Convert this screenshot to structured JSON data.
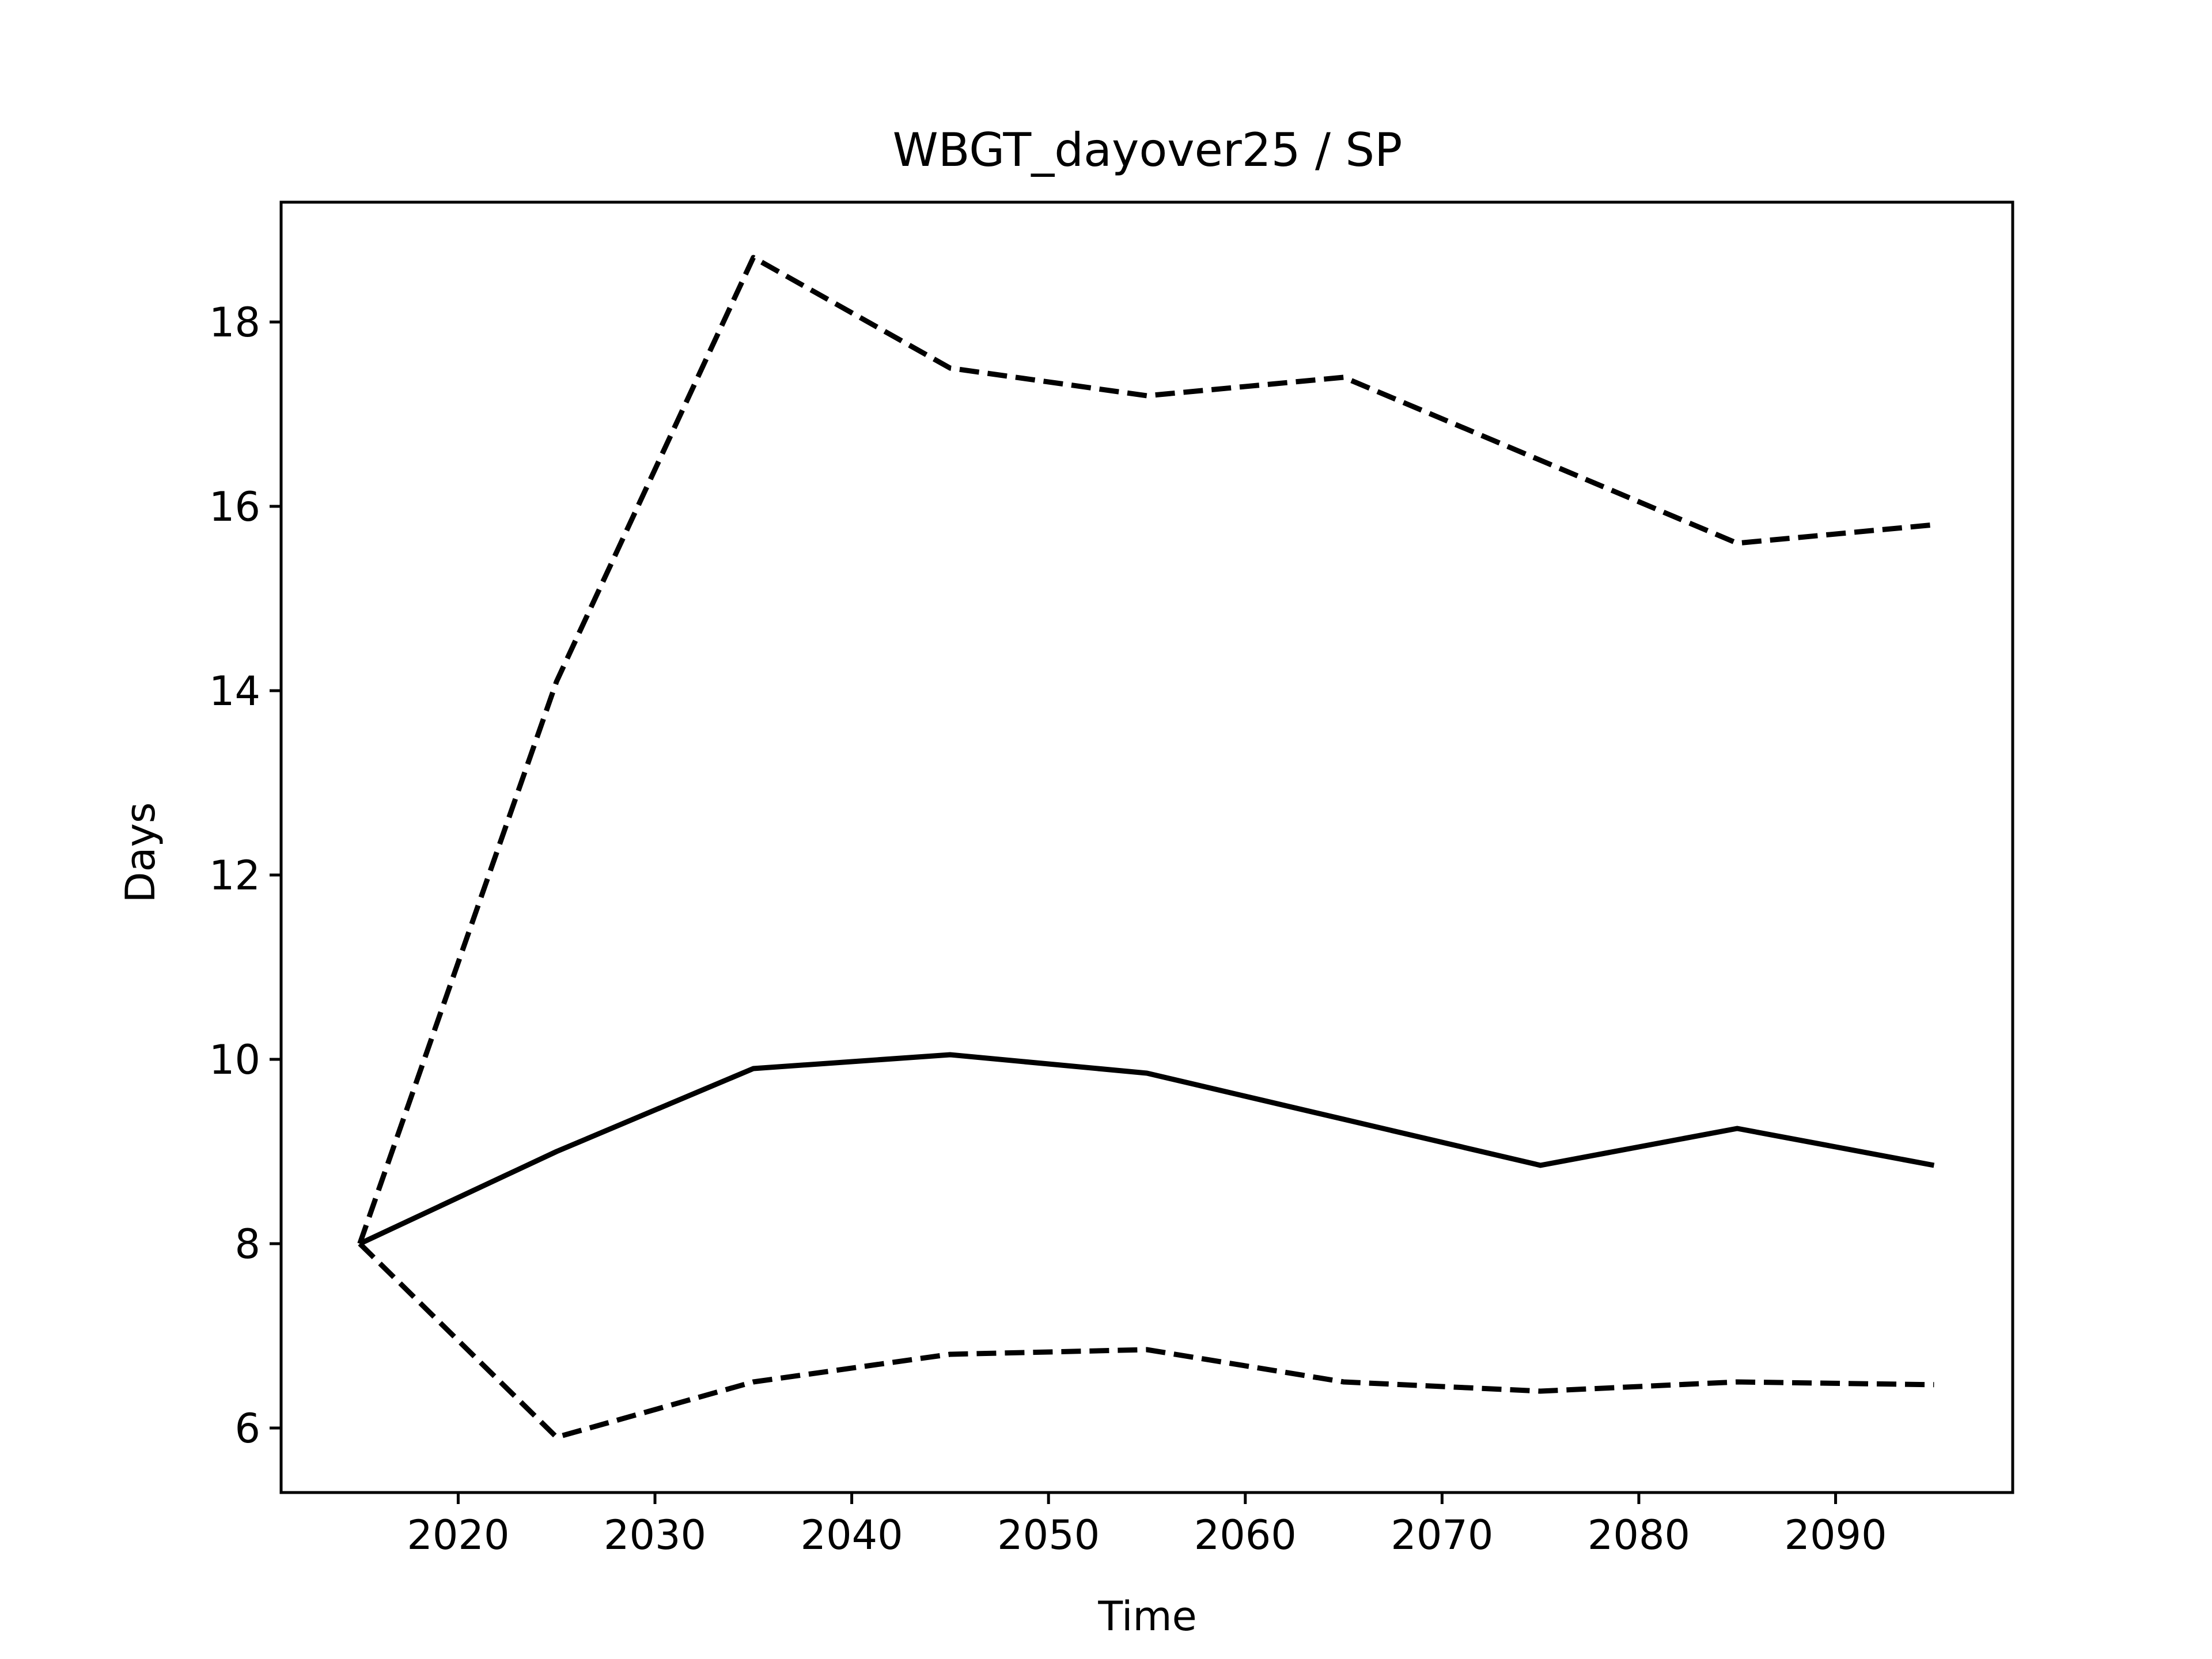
{
  "chart_data": {
    "type": "line",
    "title": "WBGT_dayover25 / SP",
    "xlabel": "Time",
    "ylabel": "Days",
    "xlim": [
      2011,
      2099
    ],
    "ylim": [
      5.3,
      19.3
    ],
    "xticks": [
      2020,
      2030,
      2040,
      2050,
      2060,
      2070,
      2080,
      2090
    ],
    "yticks": [
      6,
      8,
      10,
      12,
      14,
      16,
      18
    ],
    "grid": false,
    "legend": "none",
    "x": [
      2015,
      2025,
      2035,
      2045,
      2055,
      2065,
      2075,
      2085,
      2095
    ],
    "series": [
      {
        "style": "dashed",
        "color": "#000000",
        "values": [
          8.0,
          14.1,
          18.7,
          17.5,
          17.2,
          17.4,
          16.5,
          15.6,
          15.8
        ]
      },
      {
        "style": "solid",
        "color": "#000000",
        "values": [
          8.0,
          9.0,
          9.9,
          10.05,
          9.85,
          9.35,
          8.85,
          9.25,
          8.85
        ]
      },
      {
        "style": "dashed",
        "color": "#000000",
        "values": [
          8.0,
          5.9,
          6.5,
          6.8,
          6.85,
          6.5,
          6.4,
          6.5,
          6.47
        ]
      }
    ]
  }
}
